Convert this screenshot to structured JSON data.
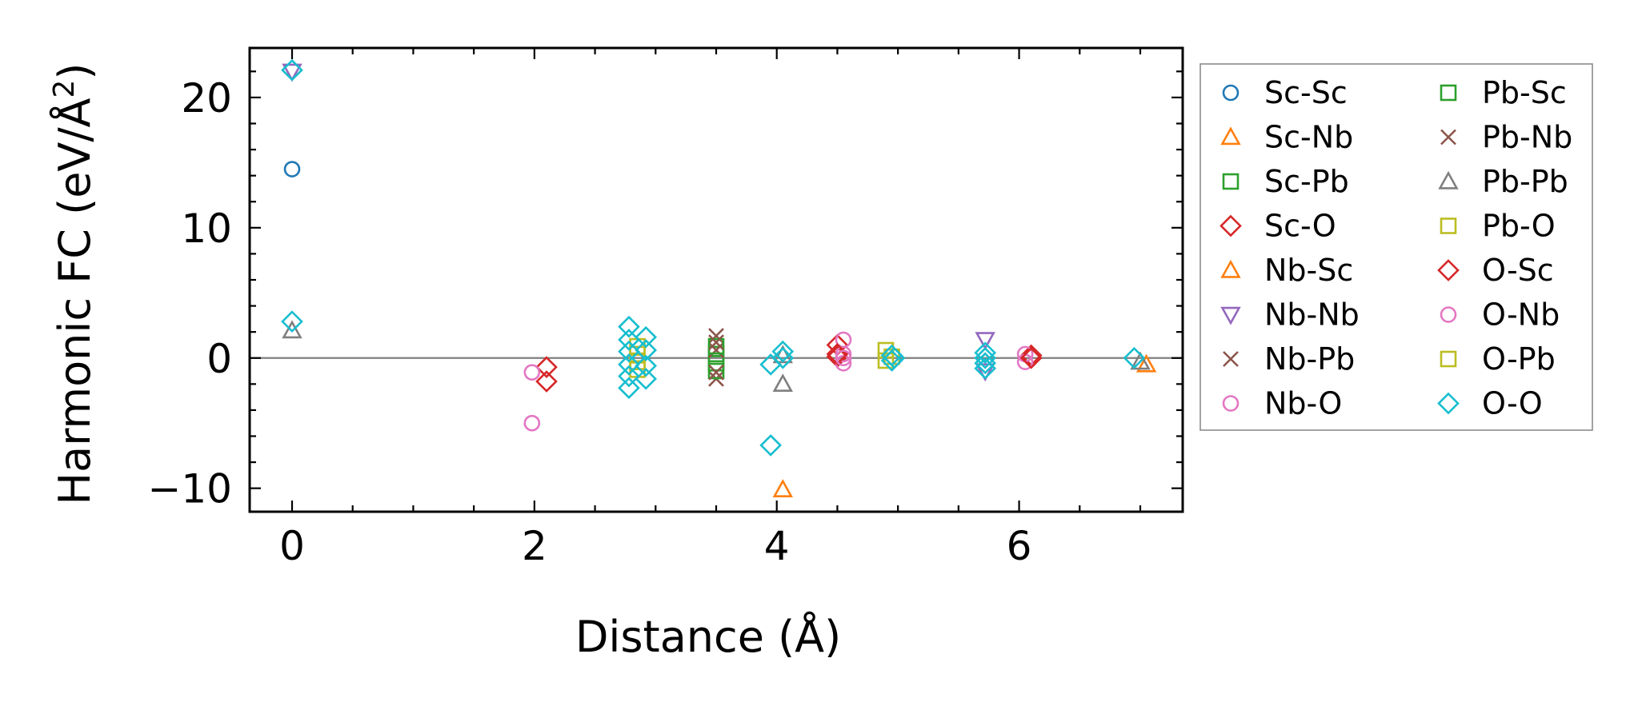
{
  "chart_data": {
    "type": "scatter",
    "title": "",
    "xlabel": "Distance (Å)",
    "ylabel_main": "Harmonic FC (eV/Å",
    "ylabel_sup": "2",
    "ylabel_close": ")",
    "xlim": [
      -0.35,
      7.35
    ],
    "ylim": [
      -11.8,
      23.8
    ],
    "xticks": [
      0,
      2,
      4,
      6
    ],
    "xtick_labels": [
      "0",
      "2",
      "4",
      "6"
    ],
    "yticks": [
      -10,
      0,
      10,
      20
    ],
    "ytick_labels": [
      "−10",
      "0",
      "10",
      "20"
    ],
    "x_minor_step": 0.5,
    "y_minor_step": 2,
    "zero_line": true,
    "legend_position": "outside-right",
    "series": [
      {
        "name": "Sc-Sc",
        "marker": "circle",
        "color": "#1f77b4",
        "points": [
          [
            0.0,
            14.5
          ]
        ]
      },
      {
        "name": "Sc-Nb",
        "marker": "triangle-up",
        "color": "#ff7f0e",
        "points": [
          [
            4.05,
            -10.1
          ]
        ]
      },
      {
        "name": "Sc-Pb",
        "marker": "square",
        "color": "#2ca02c",
        "points": [
          [
            3.5,
            0.3
          ],
          [
            3.5,
            -0.4
          ]
        ]
      },
      {
        "name": "Sc-O",
        "marker": "diamond",
        "color": "#d62728",
        "points": [
          [
            2.1,
            -0.7
          ],
          [
            2.1,
            -1.8
          ],
          [
            4.5,
            1.0
          ],
          [
            4.5,
            0.1
          ],
          [
            6.1,
            0.2
          ]
        ]
      },
      {
        "name": "Nb-Sc",
        "marker": "triangle-up",
        "color": "#ff7f0e",
        "points": [
          [
            7.05,
            -0.5
          ]
        ]
      },
      {
        "name": "Nb-Nb",
        "marker": "triangle-down",
        "color": "#9467bd",
        "points": [
          [
            0.0,
            22.0
          ],
          [
            5.72,
            1.4
          ],
          [
            5.72,
            -1.0
          ]
        ]
      },
      {
        "name": "Nb-Pb",
        "marker": "x",
        "color": "#8c564b",
        "points": [
          [
            3.5,
            1.7
          ],
          [
            3.5,
            0.6
          ],
          [
            3.5,
            -1.6
          ]
        ]
      },
      {
        "name": "Nb-O",
        "marker": "circle",
        "color": "#e377c2",
        "points": [
          [
            1.98,
            -5.0
          ],
          [
            1.98,
            -1.1
          ],
          [
            4.55,
            1.4
          ],
          [
            4.55,
            0.3
          ],
          [
            4.55,
            -0.4
          ],
          [
            6.05,
            0.3
          ],
          [
            6.05,
            -0.3
          ]
        ]
      },
      {
        "name": "Pb-Sc",
        "marker": "square",
        "color": "#2ca02c",
        "points": [
          [
            3.5,
            0.9
          ],
          [
            3.5,
            -1.0
          ]
        ]
      },
      {
        "name": "Pb-Nb",
        "marker": "x",
        "color": "#8c564b",
        "points": [
          [
            3.5,
            1.2
          ],
          [
            3.5,
            -1.1
          ]
        ]
      },
      {
        "name": "Pb-Pb",
        "marker": "triangle-up",
        "color": "#7f7f7f",
        "points": [
          [
            0.0,
            2.1
          ],
          [
            4.05,
            -2.0
          ],
          [
            4.05,
            0.2
          ],
          [
            7.0,
            -0.3
          ]
        ]
      },
      {
        "name": "Pb-O",
        "marker": "square",
        "color": "#bcbd22",
        "points": [
          [
            2.85,
            0.9
          ],
          [
            2.85,
            -0.9
          ],
          [
            4.9,
            0.6
          ],
          [
            4.9,
            -0.2
          ]
        ]
      },
      {
        "name": "O-Sc",
        "marker": "diamond",
        "color": "#d62728",
        "points": [
          [
            4.5,
            0.3
          ],
          [
            6.1,
            0.0
          ]
        ]
      },
      {
        "name": "O-Nb",
        "marker": "circle",
        "color": "#e377c2",
        "points": [
          [
            4.55,
            0.0
          ]
        ]
      },
      {
        "name": "O-Pb",
        "marker": "square",
        "color": "#bcbd22",
        "points": [
          [
            2.85,
            0.3
          ],
          [
            2.85,
            -0.3
          ],
          [
            4.95,
            0.1
          ]
        ]
      },
      {
        "name": "O-O",
        "marker": "diamond",
        "color": "#17becf",
        "points": [
          [
            0.0,
            22.1
          ],
          [
            0.0,
            2.8
          ],
          [
            2.78,
            2.4
          ],
          [
            2.78,
            1.4
          ],
          [
            2.78,
            0.5
          ],
          [
            2.78,
            -0.5
          ],
          [
            2.78,
            -1.4
          ],
          [
            2.78,
            -2.3
          ],
          [
            2.92,
            1.6
          ],
          [
            2.92,
            0.6
          ],
          [
            2.92,
            -0.6
          ],
          [
            2.92,
            -1.6
          ],
          [
            3.95,
            -0.5
          ],
          [
            3.95,
            -6.7
          ],
          [
            4.05,
            0.5
          ],
          [
            4.05,
            0.0
          ],
          [
            4.95,
            0.2
          ],
          [
            4.95,
            -0.2
          ],
          [
            4.97,
            0.0
          ],
          [
            5.72,
            0.4
          ],
          [
            5.72,
            0.0
          ],
          [
            5.72,
            -0.4
          ],
          [
            5.72,
            -0.8
          ],
          [
            6.95,
            0.0
          ]
        ]
      }
    ]
  }
}
